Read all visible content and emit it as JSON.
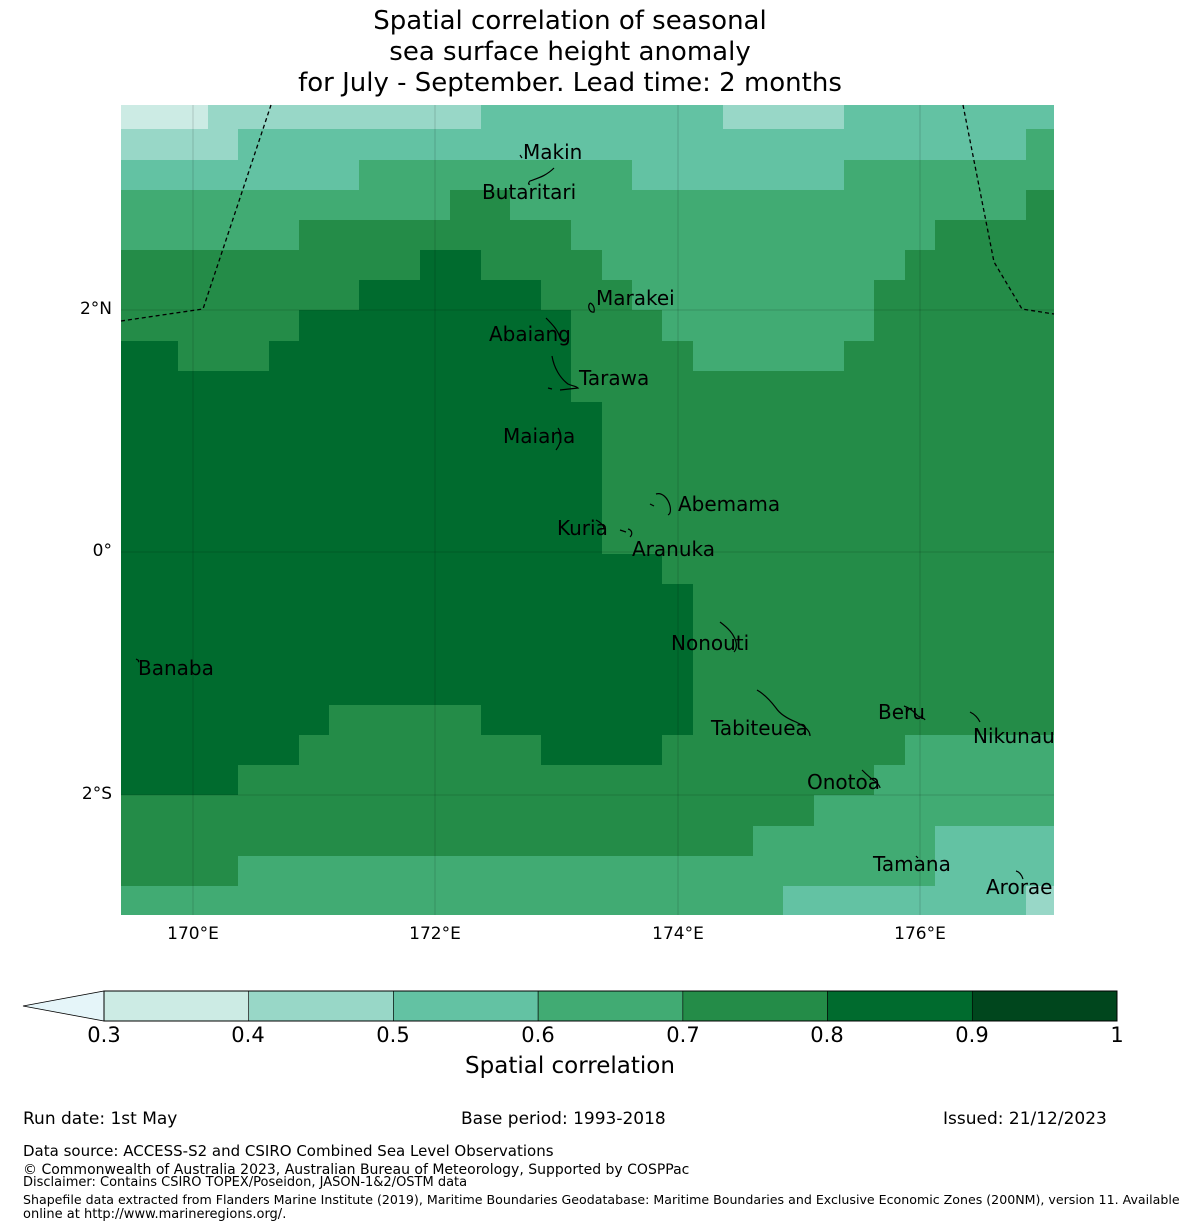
{
  "title": {
    "line1": "Spatial correlation of seasonal",
    "line2": "sea surface height anomaly",
    "line3": "for July - September. Lead time: 2 months"
  },
  "map": {
    "lon_ticks": [
      "170°E",
      "172°E",
      "174°E",
      "176°E"
    ],
    "lat_ticks": [
      "2°N",
      "0°",
      "2°S"
    ],
    "places": {
      "makin": "Makin",
      "butaritari": "Butaritari",
      "marakei": "Marakei",
      "abaiang": "Abaiang",
      "tarawa": "Tarawa",
      "maiana": "Maiana",
      "abemama": "Abemama",
      "kuria": "Kuria",
      "aranuka": "Aranuka",
      "nonouti": "Nonouti",
      "banaba": "Banaba",
      "tabiteuea": "Tabiteuea",
      "beru": "Beru",
      "nikunau": "Nikunau",
      "onotoa": "Onotoa",
      "tamana": "Tamana",
      "arorae": "Arorae"
    }
  },
  "colorbar": {
    "label": "Spatial correlation",
    "ticks": [
      "0.3",
      "0.4",
      "0.5",
      "0.6",
      "0.7",
      "0.8",
      "0.9",
      "1"
    ],
    "colors": [
      "#ccebe4",
      "#98d7c7",
      "#63c2a3",
      "#41ab73",
      "#248c48",
      "#006b2e",
      "#00461d"
    ],
    "extend_color": "#e5f5f9"
  },
  "footer": {
    "run_date": "Run date: 1st May",
    "base_period": "Base period: 1993-2018",
    "issued": "Issued: 21/12/2023",
    "data_source": "Data source: ACCESS-S2 and CSIRO Combined Sea Level Observations",
    "copyright": "© Commonwealth of Australia 2023, Australian Bureau of Meteorology, Supported by COSPPac",
    "disclaimer": "Disclaimer: Contains CSIRO TOPEX/Poseidon, JASON-1&2/OSTM data",
    "shapefile1": "Shapefile data extracted from Flanders Marine Institute (2019), Maritime Boundaries Geodatabase: Maritime Boundaries and Exclusive Economic Zones (200NM), version 11. Available",
    "shapefile2": "online at http://www.marineregions.org/."
  }
}
